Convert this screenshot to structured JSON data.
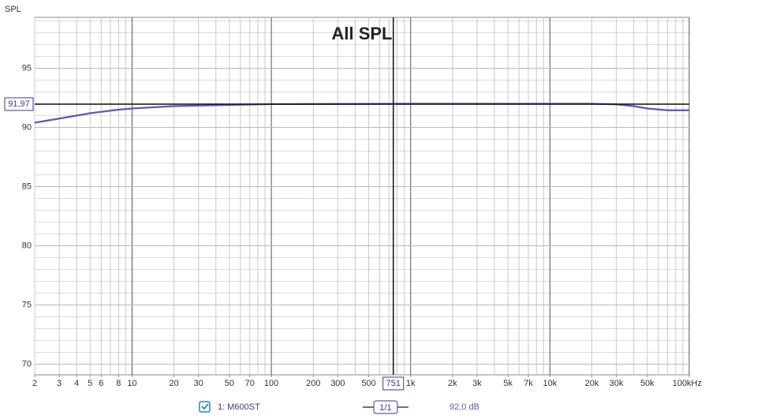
{
  "chart_data": {
    "type": "line",
    "title": "All SPL",
    "y_label": "SPL",
    "xscale": "log",
    "xlim": [
      2,
      100000
    ],
    "ylim": [
      69.1,
      99.3
    ],
    "xticks": [
      2,
      3,
      4,
      5,
      6,
      8,
      10,
      20,
      30,
      50,
      70,
      100,
      200,
      300,
      500,
      {
        "value": 1000,
        "label": "1k"
      },
      {
        "value": 2000,
        "label": "2k"
      },
      {
        "value": 3000,
        "label": "3k"
      },
      {
        "value": 5000,
        "label": "5k"
      },
      {
        "value": 7000,
        "label": "7k"
      },
      {
        "value": 10000,
        "label": "10k"
      },
      {
        "value": 20000,
        "label": "20k"
      },
      {
        "value": 30000,
        "label": "30k"
      },
      {
        "value": 50000,
        "label": "50k"
      },
      {
        "value": 100000,
        "label": "100kHz"
      }
    ],
    "x_minor_ticks": [
      2,
      3,
      4,
      5,
      6,
      7,
      8,
      9,
      10,
      20,
      30,
      40,
      50,
      60,
      70,
      80,
      90,
      100,
      200,
      300,
      400,
      500,
      600,
      700,
      800,
      900,
      1000,
      2000,
      3000,
      4000,
      5000,
      6000,
      7000,
      8000,
      9000,
      10000,
      20000,
      30000,
      40000,
      50000,
      60000,
      70000,
      80000,
      90000,
      100000
    ],
    "yticks": [
      70,
      75,
      80,
      85,
      90,
      95
    ],
    "y_minor_ticks": [
      71,
      72,
      73,
      74,
      76,
      77,
      78,
      79,
      81,
      82,
      83,
      84,
      86,
      87,
      88,
      89,
      91,
      92,
      93,
      94,
      96,
      97,
      98,
      99
    ],
    "grid": true,
    "x": [
      2,
      3,
      5,
      8,
      10,
      20,
      50,
      100,
      1000,
      10000,
      20000,
      30000,
      40000,
      50000,
      70000,
      100000
    ],
    "series": [
      {
        "name": "1: M600ST",
        "color": "#5a5aae",
        "values": [
          90.4,
          90.75,
          91.2,
          91.5,
          91.6,
          91.8,
          91.9,
          91.97,
          92.0,
          92.0,
          92.0,
          91.95,
          91.8,
          91.6,
          91.45,
          91.45
        ]
      }
    ],
    "cursor": {
      "x": {
        "value": 751,
        "label": "751"
      },
      "y": {
        "value": 91.97,
        "label": "91,97"
      }
    },
    "smoothing": "1/1",
    "cursor_readout": "92,0 dB"
  }
}
